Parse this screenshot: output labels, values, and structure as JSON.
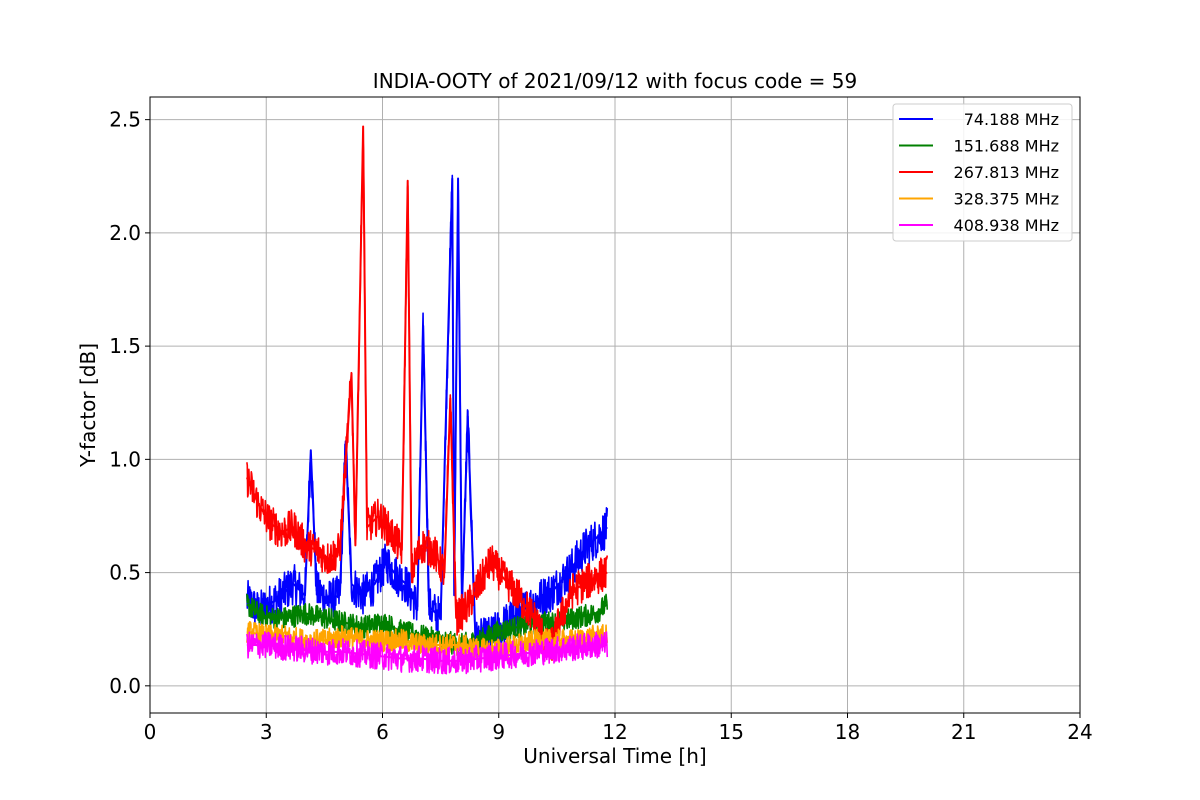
{
  "chart_data": {
    "type": "line",
    "title": "INDIA-OOTY of 2021/09/12 with focus code = 59",
    "xlabel": "Universal Time [h]",
    "ylabel": "Y-factor [dB]",
    "xlim": [
      0,
      24
    ],
    "ylim": [
      -0.12,
      2.6
    ],
    "xticks": [
      "0",
      "3",
      "6",
      "9",
      "12",
      "15",
      "18",
      "21",
      "24"
    ],
    "yticks": [
      "0.0",
      "0.5",
      "1.0",
      "1.5",
      "2.0",
      "2.5"
    ],
    "grid": true,
    "legend_position": "top-right",
    "series": [
      {
        "name": "74.188 MHz",
        "color": "#0000ff",
        "points": [
          [
            2.5,
            0.38
          ],
          [
            2.8,
            0.33
          ],
          [
            3.1,
            0.36
          ],
          [
            3.4,
            0.4
          ],
          [
            3.7,
            0.45
          ],
          [
            4.0,
            0.4
          ],
          [
            4.15,
            1.04
          ],
          [
            4.3,
            0.42
          ],
          [
            4.6,
            0.38
          ],
          [
            4.9,
            0.4
          ],
          [
            5.05,
            1.08
          ],
          [
            5.2,
            0.45
          ],
          [
            5.5,
            0.4
          ],
          [
            5.8,
            0.45
          ],
          [
            6.1,
            0.55
          ],
          [
            6.3,
            0.5
          ],
          [
            6.6,
            0.45
          ],
          [
            6.9,
            0.35
          ],
          [
            7.05,
            1.59
          ],
          [
            7.2,
            0.35
          ],
          [
            7.5,
            0.3
          ],
          [
            7.8,
            2.24
          ],
          [
            7.85,
            0.4
          ],
          [
            7.95,
            2.24
          ],
          [
            8.05,
            0.35
          ],
          [
            8.2,
            1.19
          ],
          [
            8.4,
            0.2
          ],
          [
            8.8,
            0.22
          ],
          [
            9.2,
            0.28
          ],
          [
            9.6,
            0.33
          ],
          [
            10.0,
            0.38
          ],
          [
            10.4,
            0.42
          ],
          [
            10.8,
            0.5
          ],
          [
            11.2,
            0.6
          ],
          [
            11.5,
            0.65
          ],
          [
            11.8,
            0.7
          ]
        ]
      },
      {
        "name": "151.688 MHz",
        "color": "#008000",
        "points": [
          [
            2.5,
            0.36
          ],
          [
            2.8,
            0.32
          ],
          [
            3.1,
            0.3
          ],
          [
            3.5,
            0.3
          ],
          [
            4.0,
            0.32
          ],
          [
            4.5,
            0.3
          ],
          [
            5.0,
            0.28
          ],
          [
            5.5,
            0.26
          ],
          [
            6.0,
            0.28
          ],
          [
            6.5,
            0.24
          ],
          [
            7.0,
            0.22
          ],
          [
            7.5,
            0.2
          ],
          [
            8.0,
            0.18
          ],
          [
            8.5,
            0.2
          ],
          [
            9.0,
            0.24
          ],
          [
            9.5,
            0.26
          ],
          [
            10.0,
            0.28
          ],
          [
            10.5,
            0.28
          ],
          [
            11.0,
            0.3
          ],
          [
            11.5,
            0.32
          ],
          [
            11.8,
            0.36
          ]
        ]
      },
      {
        "name": "267.813 MHz",
        "color": "#ff0000",
        "points": [
          [
            2.5,
            0.92
          ],
          [
            2.8,
            0.8
          ],
          [
            3.1,
            0.72
          ],
          [
            3.4,
            0.68
          ],
          [
            3.7,
            0.7
          ],
          [
            4.0,
            0.62
          ],
          [
            4.3,
            0.6
          ],
          [
            4.6,
            0.56
          ],
          [
            4.9,
            0.6
          ],
          [
            5.2,
            1.38
          ],
          [
            5.3,
            0.62
          ],
          [
            5.5,
            2.47
          ],
          [
            5.6,
            0.7
          ],
          [
            5.9,
            0.75
          ],
          [
            6.2,
            0.68
          ],
          [
            6.5,
            0.6
          ],
          [
            6.65,
            2.23
          ],
          [
            6.75,
            0.5
          ],
          [
            7.0,
            0.62
          ],
          [
            7.3,
            0.6
          ],
          [
            7.6,
            0.5
          ],
          [
            7.75,
            1.27
          ],
          [
            7.9,
            0.3
          ],
          [
            8.2,
            0.35
          ],
          [
            8.5,
            0.45
          ],
          [
            8.8,
            0.55
          ],
          [
            9.1,
            0.48
          ],
          [
            9.4,
            0.42
          ],
          [
            9.7,
            0.35
          ],
          [
            10.0,
            0.28
          ],
          [
            10.3,
            0.15
          ],
          [
            10.6,
            0.3
          ],
          [
            10.9,
            0.42
          ],
          [
            11.2,
            0.45
          ],
          [
            11.5,
            0.48
          ],
          [
            11.8,
            0.5
          ]
        ]
      },
      {
        "name": "328.375 MHz",
        "color": "#ffa500",
        "points": [
          [
            2.5,
            0.24
          ],
          [
            3.0,
            0.22
          ],
          [
            3.5,
            0.22
          ],
          [
            4.0,
            0.2
          ],
          [
            4.5,
            0.2
          ],
          [
            5.0,
            0.22
          ],
          [
            5.5,
            0.2
          ],
          [
            6.0,
            0.2
          ],
          [
            6.5,
            0.2
          ],
          [
            7.0,
            0.18
          ],
          [
            7.5,
            0.18
          ],
          [
            8.0,
            0.18
          ],
          [
            8.5,
            0.16
          ],
          [
            9.0,
            0.16
          ],
          [
            9.5,
            0.18
          ],
          [
            10.0,
            0.2
          ],
          [
            10.5,
            0.2
          ],
          [
            11.0,
            0.2
          ],
          [
            11.5,
            0.22
          ],
          [
            11.8,
            0.22
          ]
        ]
      },
      {
        "name": "408.938 MHz",
        "color": "#ff00ff",
        "points": [
          [
            2.5,
            0.18
          ],
          [
            3.0,
            0.18
          ],
          [
            3.5,
            0.17
          ],
          [
            4.0,
            0.16
          ],
          [
            4.5,
            0.15
          ],
          [
            5.0,
            0.15
          ],
          [
            5.5,
            0.14
          ],
          [
            6.0,
            0.13
          ],
          [
            6.5,
            0.12
          ],
          [
            7.0,
            0.12
          ],
          [
            7.5,
            0.11
          ],
          [
            8.0,
            0.11
          ],
          [
            8.5,
            0.12
          ],
          [
            9.0,
            0.13
          ],
          [
            9.5,
            0.14
          ],
          [
            10.0,
            0.15
          ],
          [
            10.5,
            0.16
          ],
          [
            11.0,
            0.17
          ],
          [
            11.5,
            0.18
          ],
          [
            11.8,
            0.18
          ]
        ]
      }
    ]
  }
}
